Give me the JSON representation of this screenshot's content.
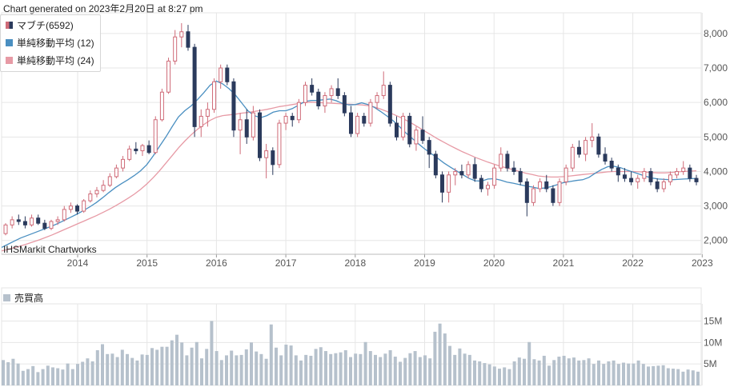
{
  "header": {
    "generated": "Chart generated on 2023年2月20日 at 8:27 pm"
  },
  "legend": {
    "stock": {
      "label": "マブチ(6592)",
      "color": "#cf6b78",
      "color2": "#2b3a5c"
    },
    "ma12": {
      "label": "単純移動平均 (12)",
      "color": "#4a8fc1"
    },
    "ma24": {
      "label": "単純移動平均 (24)",
      "color": "#e79aa5"
    }
  },
  "volume_legend": {
    "label": "売買高",
    "color": "#b6c1cc"
  },
  "watermark": "IHSMarkit Chartworks",
  "chart_data": [
    {
      "type": "candlestick",
      "title": "",
      "x_ticks": [
        "2014",
        "2015",
        "2016",
        "2017",
        "2018",
        "2019",
        "2020",
        "2021",
        "2022",
        "2023"
      ],
      "y_ticks": [
        "2,000",
        "3,000",
        "4,000",
        "5,000",
        "6,000",
        "7,000",
        "8,000"
      ],
      "ylim": [
        1600,
        8600
      ],
      "grid": true,
      "candles_ohlc": [
        [
          2200,
          2500,
          2150,
          2450
        ],
        [
          2450,
          2700,
          2350,
          2600
        ],
        [
          2600,
          2750,
          2450,
          2550
        ],
        [
          2550,
          2700,
          2350,
          2450
        ],
        [
          2450,
          2750,
          2400,
          2650
        ],
        [
          2650,
          2750,
          2450,
          2500
        ],
        [
          2500,
          2600,
          2300,
          2350
        ],
        [
          2350,
          2600,
          2300,
          2550
        ],
        [
          2550,
          2700,
          2450,
          2600
        ],
        [
          2600,
          3000,
          2550,
          2900
        ],
        [
          2900,
          3100,
          2800,
          3000
        ],
        [
          3000,
          3050,
          2750,
          2850
        ],
        [
          2850,
          3200,
          2800,
          3150
        ],
        [
          3150,
          3450,
          3100,
          3350
        ],
        [
          3350,
          3550,
          3250,
          3450
        ],
        [
          3450,
          3750,
          3400,
          3600
        ],
        [
          3600,
          3950,
          3550,
          3850
        ],
        [
          3850,
          4200,
          3800,
          4100
        ],
        [
          4100,
          4450,
          4000,
          4350
        ],
        [
          4350,
          4750,
          4300,
          4650
        ],
        [
          4650,
          4850,
          4500,
          4600
        ],
        [
          4600,
          4800,
          4450,
          4750
        ],
        [
          4750,
          4900,
          4500,
          4550
        ],
        [
          4550,
          5600,
          4500,
          5500
        ],
        [
          5500,
          6400,
          5450,
          6300
        ],
        [
          6300,
          7300,
          6250,
          7200
        ],
        [
          7200,
          8100,
          7100,
          7900
        ],
        [
          7900,
          8300,
          7600,
          8050
        ],
        [
          8050,
          8250,
          7500,
          7600
        ],
        [
          7600,
          7700,
          5000,
          5300
        ],
        [
          5300,
          5800,
          5000,
          5600
        ],
        [
          5600,
          6000,
          5300,
          5800
        ],
        [
          5800,
          6700,
          5700,
          6600
        ],
        [
          6600,
          7100,
          6400,
          7000
        ],
        [
          7000,
          7100,
          6500,
          6600
        ],
        [
          6600,
          6700,
          5000,
          5200
        ],
        [
          5200,
          5700,
          4500,
          5500
        ],
        [
          5500,
          5800,
          4800,
          5000
        ],
        [
          5000,
          5900,
          4900,
          5700
        ],
        [
          5700,
          5800,
          4300,
          4400
        ],
        [
          4400,
          4800,
          3800,
          4600
        ],
        [
          4600,
          4700,
          3900,
          4200
        ],
        [
          4200,
          5500,
          4100,
          5400
        ],
        [
          5400,
          5700,
          5200,
          5600
        ],
        [
          5600,
          5700,
          5300,
          5500
        ],
        [
          5500,
          6100,
          5400,
          6000
        ],
        [
          6000,
          6600,
          5900,
          6500
        ],
        [
          6500,
          6700,
          6200,
          6300
        ],
        [
          6300,
          6400,
          5800,
          5900
        ],
        [
          5900,
          6300,
          5700,
          6200
        ],
        [
          6200,
          6500,
          6000,
          6400
        ],
        [
          6400,
          6700,
          6100,
          6200
        ],
        [
          6200,
          6300,
          5600,
          5700
        ],
        [
          5700,
          5900,
          5000,
          5100
        ],
        [
          5100,
          5700,
          5000,
          5600
        ],
        [
          5600,
          5700,
          5300,
          5400
        ],
        [
          5400,
          6100,
          5300,
          6000
        ],
        [
          6000,
          6300,
          5800,
          6200
        ],
        [
          6200,
          6900,
          6100,
          6500
        ],
        [
          6500,
          6600,
          5300,
          5400
        ],
        [
          5400,
          5600,
          4900,
          5000
        ],
        [
          5000,
          5700,
          4900,
          5600
        ],
        [
          5600,
          5700,
          4700,
          4800
        ],
        [
          4800,
          5300,
          4600,
          5200
        ],
        [
          5200,
          5600,
          4800,
          4900
        ],
        [
          4900,
          5000,
          4100,
          4500
        ],
        [
          4500,
          4600,
          3800,
          3900
        ],
        [
          3900,
          4000,
          3100,
          3400
        ],
        [
          3400,
          4000,
          3100,
          3900
        ],
        [
          3900,
          4100,
          3600,
          4000
        ],
        [
          4000,
          4200,
          3800,
          3900
        ],
        [
          3900,
          4300,
          3800,
          4200
        ],
        [
          4200,
          4400,
          3700,
          3800
        ],
        [
          3800,
          3900,
          3400,
          3500
        ],
        [
          3500,
          3700,
          3300,
          3600
        ],
        [
          3600,
          4200,
          3500,
          4100
        ],
        [
          4100,
          4700,
          4000,
          4500
        ],
        [
          4500,
          4600,
          4000,
          4100
        ],
        [
          4100,
          4300,
          3900,
          4000
        ],
        [
          4000,
          4100,
          3600,
          3700
        ],
        [
          3700,
          3800,
          2700,
          3100
        ],
        [
          3100,
          3600,
          3000,
          3500
        ],
        [
          3500,
          3800,
          3400,
          3700
        ],
        [
          3700,
          3900,
          3400,
          3500
        ],
        [
          3500,
          3600,
          3000,
          3100
        ],
        [
          3100,
          3800,
          3000,
          3700
        ],
        [
          3700,
          4200,
          3600,
          4100
        ],
        [
          4100,
          4800,
          4000,
          4700
        ],
        [
          4700,
          4900,
          4400,
          4500
        ],
        [
          4500,
          5000,
          4300,
          4900
        ],
        [
          4900,
          5400,
          4700,
          5000
        ],
        [
          5000,
          5100,
          4400,
          4500
        ],
        [
          4500,
          4700,
          4200,
          4300
        ],
        [
          4300,
          4400,
          4000,
          4100
        ],
        [
          4100,
          4200,
          3700,
          3900
        ],
        [
          3900,
          4100,
          3700,
          3800
        ],
        [
          3800,
          4000,
          3600,
          3700
        ],
        [
          3700,
          3900,
          3500,
          3800
        ],
        [
          3800,
          4100,
          3700,
          4000
        ],
        [
          4000,
          4100,
          3600,
          3700
        ],
        [
          3700,
          3800,
          3400,
          3500
        ],
        [
          3500,
          3800,
          3400,
          3700
        ],
        [
          3700,
          4000,
          3600,
          3900
        ],
        [
          3900,
          4100,
          3800,
          4000
        ],
        [
          4000,
          4300,
          3900,
          4100
        ],
        [
          4100,
          4200,
          3700,
          3800
        ],
        [
          3800,
          3900,
          3600,
          3700
        ]
      ],
      "sma12": [
        1800,
        1890,
        1980,
        2070,
        2140,
        2210,
        2280,
        2350,
        2420,
        2500,
        2590,
        2680,
        2770,
        2870,
        2980,
        3100,
        3240,
        3390,
        3530,
        3650,
        3760,
        3880,
        4020,
        4200,
        4450,
        4730,
        5000,
        5300,
        5580,
        5760,
        5900,
        6080,
        6280,
        6500,
        6620,
        6540,
        6400,
        6220,
        5990,
        5760,
        5620,
        5560,
        5620,
        5720,
        5760,
        5760,
        5820,
        5920,
        6030,
        6060,
        6060,
        6080,
        6100,
        6050,
        5970,
        5930,
        5940,
        5990,
        5940,
        5860,
        5740,
        5610,
        5470,
        5300,
        5120,
        4960,
        4800,
        4650,
        4520,
        4390,
        4250,
        4130,
        4020,
        3910,
        3800,
        3730,
        3720,
        3780,
        3790,
        3750,
        3690,
        3660,
        3620,
        3580,
        3550,
        3510,
        3520,
        3560,
        3620,
        3680,
        3710,
        3740,
        3760,
        3830,
        3950,
        4060,
        4140,
        4150,
        4110,
        4040,
        3980,
        3920,
        3860,
        3810,
        3780,
        3770,
        3760,
        3770,
        3780,
        3790,
        3800
      ],
      "sma24": [
        1700,
        1740,
        1790,
        1840,
        1900,
        1960,
        2020,
        2090,
        2160,
        2240,
        2320,
        2400,
        2480,
        2560,
        2640,
        2720,
        2810,
        2900,
        3000,
        3110,
        3220,
        3340,
        3480,
        3640,
        3820,
        4020,
        4240,
        4460,
        4680,
        4880,
        5060,
        5220,
        5360,
        5480,
        5570,
        5620,
        5640,
        5660,
        5690,
        5710,
        5740,
        5770,
        5800,
        5840,
        5880,
        5910,
        5940,
        5970,
        6000,
        6010,
        6000,
        5990,
        5980,
        5970,
        5960,
        5950,
        5940,
        5930,
        5910,
        5870,
        5810,
        5740,
        5660,
        5580,
        5490,
        5390,
        5280,
        5170,
        5060,
        4950,
        4850,
        4750,
        4660,
        4570,
        4490,
        4410,
        4340,
        4270,
        4210,
        4150,
        4100,
        4050,
        4000,
        3950,
        3910,
        3870,
        3850,
        3840,
        3840,
        3850,
        3870,
        3890,
        3910,
        3930,
        3950,
        3970,
        3990,
        4000,
        4000,
        4000,
        4000,
        3990,
        3980,
        3970,
        3960,
        3960,
        3970,
        3990,
        4000,
        4010,
        4020
      ]
    },
    {
      "type": "bar",
      "title": "",
      "y_ticks": [
        "5M",
        "10M",
        "15M"
      ],
      "ylim": [
        0,
        19
      ],
      "volumes": [
        5.9,
        5.4,
        6.2,
        5.1,
        3.4,
        3.8,
        4.5,
        3.1,
        3.8,
        4.6,
        4.2,
        4.0,
        3.7,
        5.1,
        3.8,
        5.0,
        5.5,
        6.3,
        5.6,
        8.2,
        9.6,
        7.3,
        7.4,
        6.6,
        8.3,
        7.3,
        6.4,
        5.8,
        7.2,
        7.1,
        8.7,
        8.3,
        9.0,
        9.0,
        10.5,
        11.8,
        10.0,
        7.0,
        8.8,
        10.1,
        6.3,
        8.5,
        15.0,
        8.0,
        5.9,
        7.0,
        8.1,
        7.0,
        7.1,
        8.4,
        10.0,
        7.9,
        7.3,
        6.2,
        14.2,
        8.8,
        7.0,
        9.5,
        9.3,
        7.0,
        5.8,
        7.1,
        6.9,
        8.5,
        8.9,
        8.0,
        7.3,
        7.5,
        7.7,
        8.2,
        6.6,
        7.4,
        7.3,
        10.1,
        8.0,
        7.1,
        6.6,
        7.4,
        8.2,
        6.7,
        5.5,
        6.4,
        7.5,
        8.0,
        6.6,
        7.0,
        6.3,
        12.5,
        14.4,
        12.1,
        9.2,
        7.1,
        8.6,
        7.4,
        7.1,
        5.8,
        5.6,
        5.2,
        4.9,
        4.4,
        3.9,
        4.2,
        3.8,
        5.6,
        6.5,
        6.2,
        10.1,
        6.1,
        5.8,
        6.9,
        4.6,
        5.9,
        6.7,
        6.9,
        6.3,
        6.5,
        5.8,
        5.9,
        6.3,
        5.0,
        5.8,
        5.0,
        5.6,
        5.8,
        5.0,
        5.3,
        5.1,
        5.1,
        5.8,
        5.0,
        4.4,
        4.5,
        4.6,
        4.7,
        4.0,
        3.9,
        3.8,
        3.2,
        3.7,
        3.5,
        3.2
      ]
    }
  ]
}
